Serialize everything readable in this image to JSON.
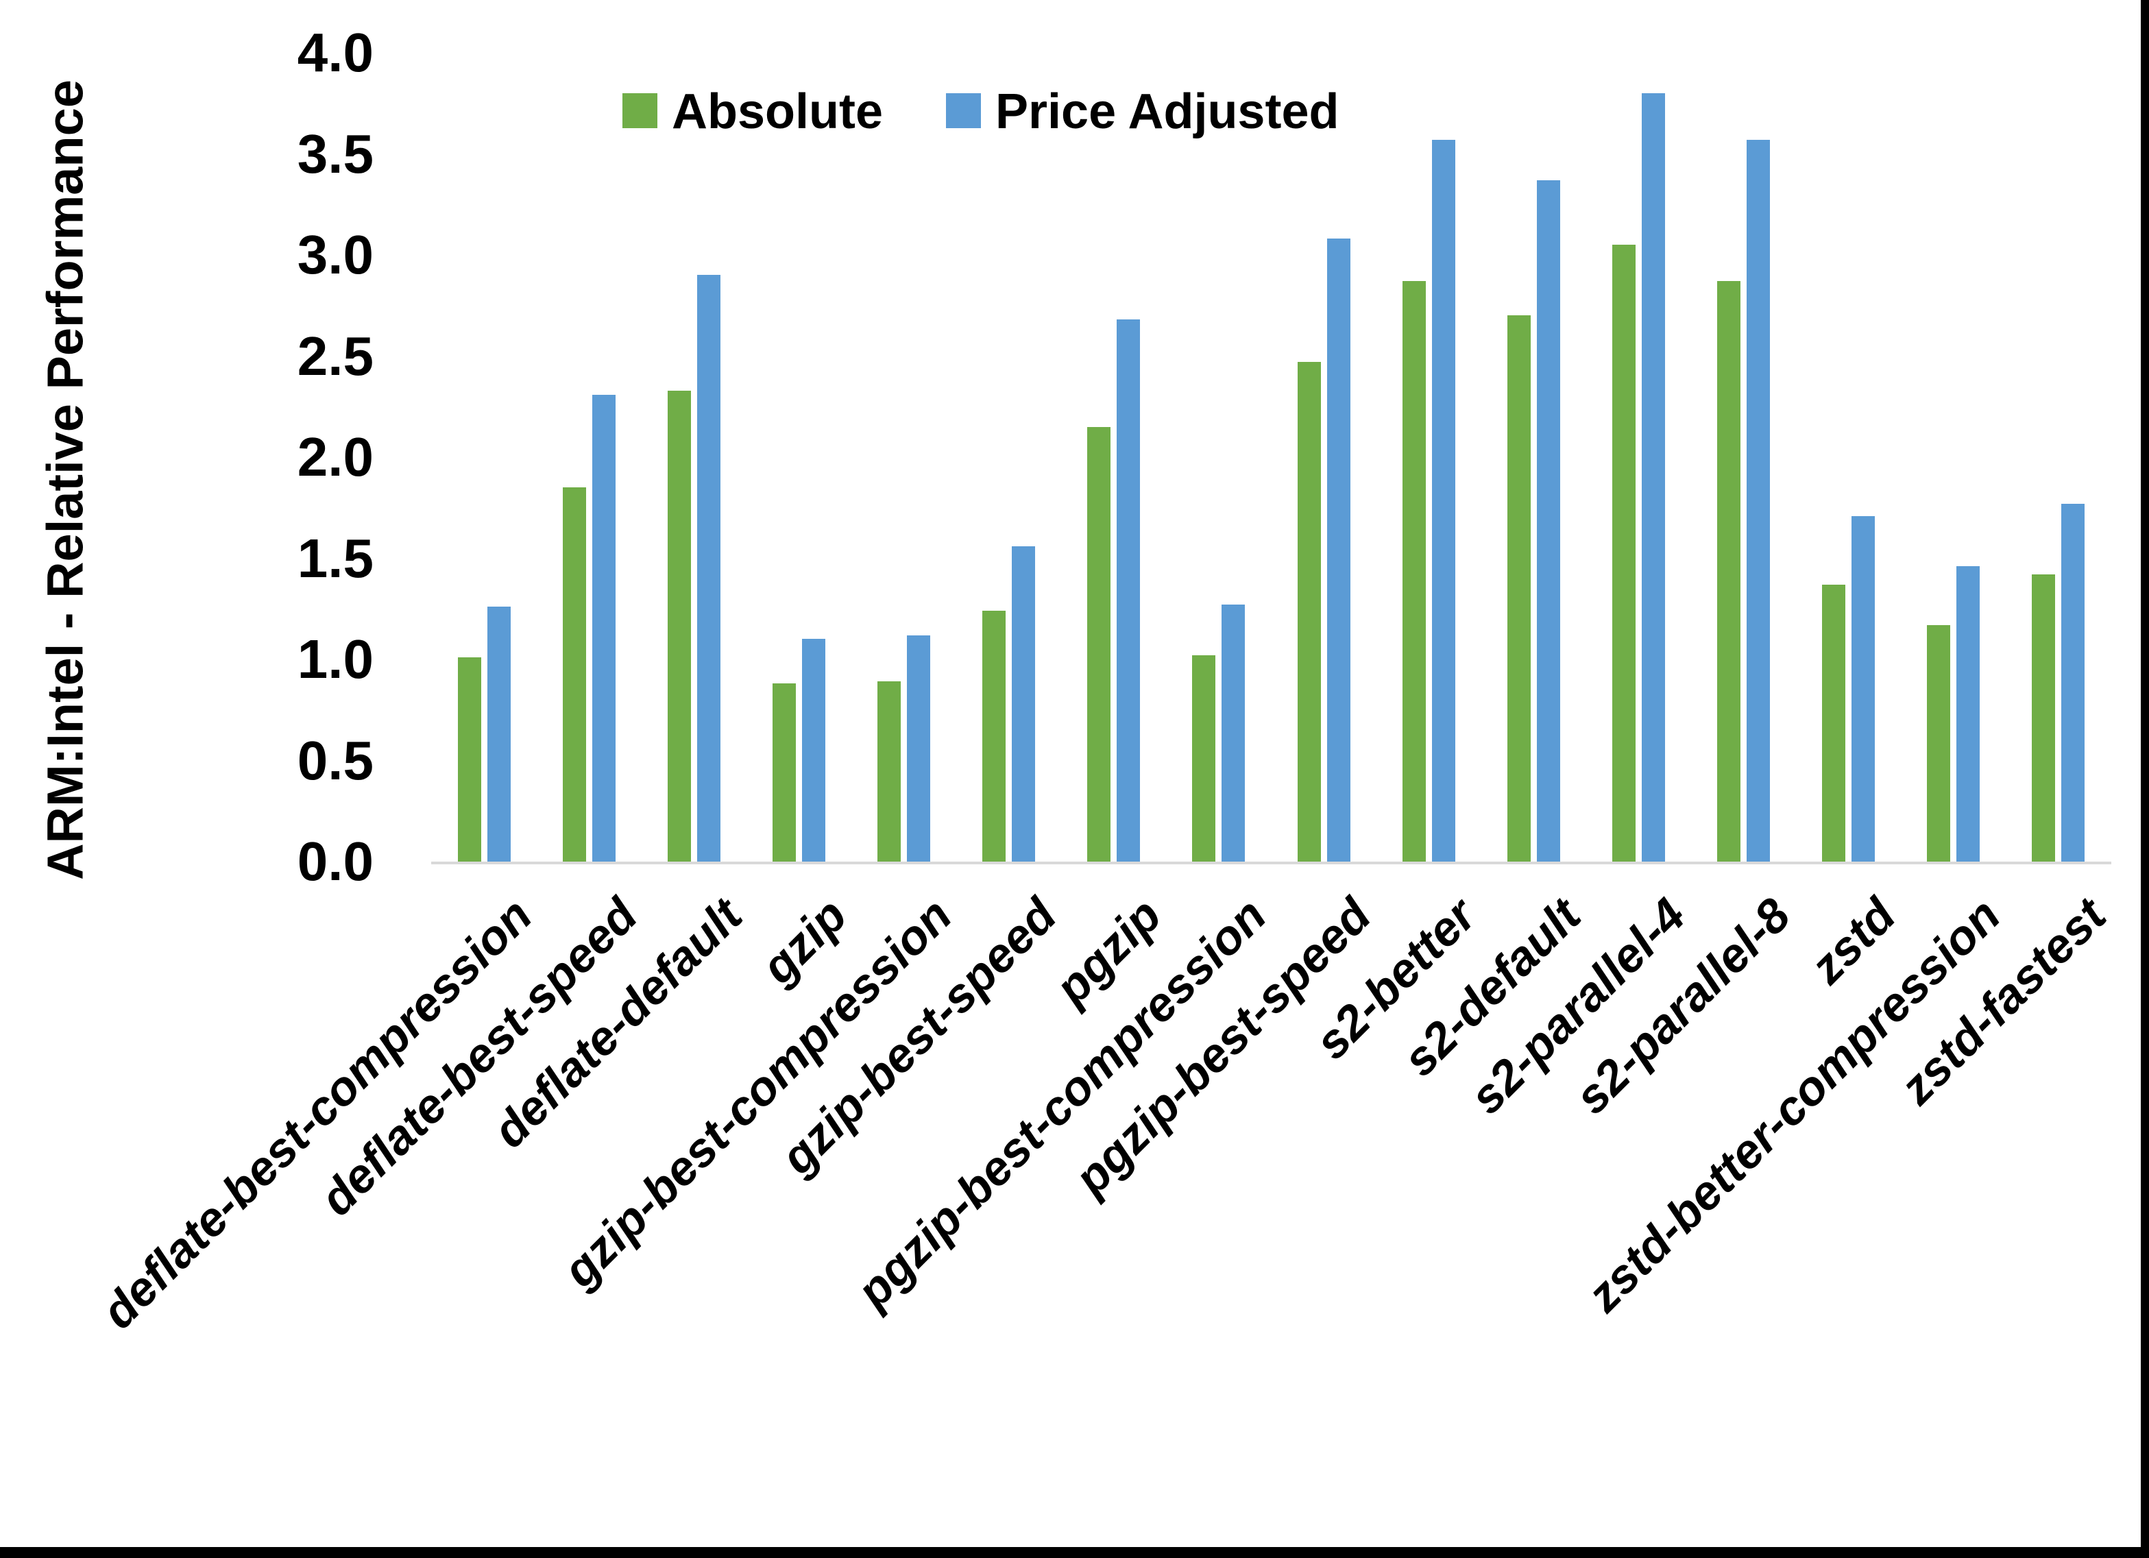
{
  "chart_data": {
    "type": "bar",
    "title": "",
    "xlabel": "",
    "ylabel": "ARM:Intel - Relative Performance",
    "ylim": [
      0.0,
      4.0
    ],
    "ytick_step": 0.5,
    "ytick_labels": [
      "0.0",
      "0.5",
      "1.0",
      "1.5",
      "2.0",
      "2.5",
      "3.0",
      "3.5",
      "4.0"
    ],
    "grid": false,
    "legend_position": "top-center",
    "categories": [
      "deflate-best-compression",
      "deflate-best-speed",
      "deflate-default",
      "gzip",
      "gzip-best-compression",
      "gzip-best-speed",
      "pgzip",
      "pgzip-best-compression",
      "pgzip-best-speed",
      "s2-better",
      "s2-default",
      "s2-parallel-4",
      "s2-parallel-8",
      "zstd",
      "zstd-better-compression",
      "zstd-fastest"
    ],
    "series": [
      {
        "name": "Absolute",
        "color": "#70AD47",
        "values": [
          1.01,
          1.85,
          2.33,
          0.88,
          0.89,
          1.24,
          2.15,
          1.02,
          2.47,
          2.87,
          2.7,
          3.05,
          2.87,
          1.37,
          1.17,
          1.42
        ]
      },
      {
        "name": "Price Adjusted",
        "color": "#5B9BD5",
        "values": [
          1.26,
          2.31,
          2.9,
          1.1,
          1.12,
          1.56,
          2.68,
          1.27,
          3.08,
          3.57,
          3.37,
          3.8,
          3.57,
          1.71,
          1.46,
          1.77
        ]
      }
    ],
    "axis_line_color": "#D9D9D9",
    "text_color": "#000000"
  },
  "frame": {
    "right_border_color": "#000000",
    "bottom_border_color": "#000000"
  }
}
